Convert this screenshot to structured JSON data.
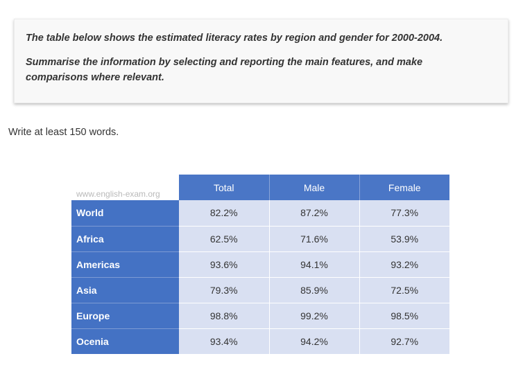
{
  "task": {
    "line1": "The table below shows the estimated literacy rates by region and gender for 2000-2004.",
    "line2": "Summarise the information by selecting and reporting the main features, and make comparisons where relevant."
  },
  "instruction": "Write at least 150 words.",
  "watermark": "www.english-exam.org",
  "chart_data": {
    "type": "table",
    "columns": [
      "Total",
      "Male",
      "Female"
    ],
    "rows": [
      {
        "region": "World",
        "values": [
          "82.2%",
          "87.2%",
          "77.3%"
        ]
      },
      {
        "region": "Africa",
        "values": [
          "62.5%",
          "71.6%",
          "53.9%"
        ]
      },
      {
        "region": "Americas",
        "values": [
          "93.6%",
          "94.1%",
          "93.2%"
        ]
      },
      {
        "region": "Asia",
        "values": [
          "79.3%",
          "85.9%",
          "72.5%"
        ]
      },
      {
        "region": "Europe",
        "values": [
          "98.8%",
          "99.2%",
          "98.5%"
        ]
      },
      {
        "region": "Ocenia",
        "values": [
          "93.4%",
          "94.2%",
          "92.7%"
        ]
      }
    ]
  },
  "colors": {
    "header_bg": "#4a76c6",
    "region_bg": "#4472c4",
    "cell_bg": "#d9e0f2"
  }
}
